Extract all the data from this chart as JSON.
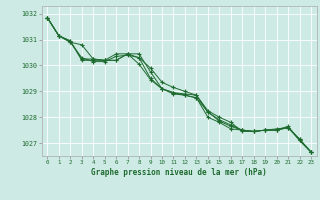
{
  "title": "Graphe pression niveau de la mer (hPa)",
  "background_color": "#ceeae4",
  "grid_color": "#ffffff",
  "line_color": "#1e6b30",
  "xlim": [
    -0.5,
    23.5
  ],
  "ylim": [
    1026.5,
    1032.3
  ],
  "yticks": [
    1027,
    1028,
    1029,
    1030,
    1031,
    1032
  ],
  "xticks": [
    0,
    1,
    2,
    3,
    4,
    5,
    6,
    7,
    8,
    9,
    10,
    11,
    12,
    13,
    14,
    15,
    16,
    17,
    18,
    19,
    20,
    21,
    22,
    23
  ],
  "series": [
    [
      1031.85,
      1031.15,
      1030.95,
      1030.25,
      1030.25,
      1030.2,
      1030.45,
      1030.45,
      1030.05,
      1029.45,
      1029.1,
      1028.9,
      1028.85,
      1028.75,
      1028.0,
      1027.8,
      1027.55,
      1027.5,
      1027.45,
      1027.5,
      1027.55,
      1027.6,
      1027.15,
      1026.65
    ],
    [
      1031.85,
      1031.15,
      1030.9,
      1030.3,
      1030.15,
      1030.15,
      1030.35,
      1030.4,
      1030.3,
      1029.9,
      1029.35,
      1029.15,
      1029.0,
      1028.85,
      1028.2,
      1027.85,
      1027.65,
      1027.5,
      1027.45,
      1027.5,
      1027.5,
      1027.65,
      1027.1,
      1026.65
    ],
    [
      1031.85,
      1031.15,
      1030.95,
      1030.2,
      1030.2,
      1030.2,
      1030.2,
      1030.45,
      1030.3,
      1029.5,
      1029.1,
      1028.95,
      1028.85,
      1028.75,
      1028.2,
      1027.9,
      1027.7,
      1027.5,
      1027.45,
      1027.5,
      1027.5,
      1027.6,
      1027.15,
      1026.65
    ],
    [
      1031.85,
      1031.15,
      1030.9,
      1030.8,
      1030.25,
      1030.2,
      1030.2,
      1030.45,
      1030.45,
      1029.75,
      1029.1,
      1028.95,
      1028.9,
      1028.85,
      1028.25,
      1028.0,
      1027.8,
      1027.45,
      1027.45,
      1027.5,
      1027.5,
      1027.6,
      1027.1,
      1026.65
    ]
  ]
}
